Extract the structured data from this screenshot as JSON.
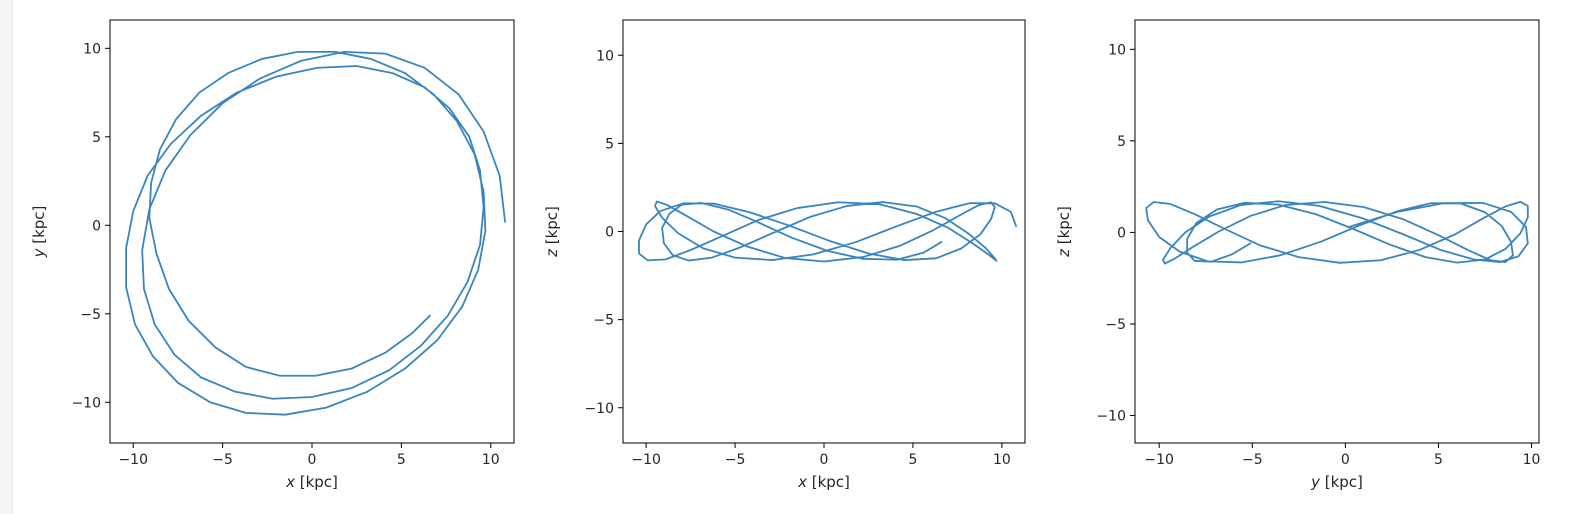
{
  "colors": {
    "line": "#3a85c0",
    "axes": "#000000",
    "text": "#262626",
    "background": "#ffffff"
  },
  "chart_data": [
    {
      "type": "line",
      "xlabel": {
        "var": "x",
        "unit": " [kpc]"
      },
      "ylabel": {
        "var": "y",
        "unit": " [kpc]"
      },
      "xlim": [
        -11.3,
        11.3
      ],
      "ylim": [
        -12.3,
        11.6
      ],
      "xticks": [
        -10,
        -5,
        0,
        5,
        10
      ],
      "yticks": [
        -10,
        -5,
        0,
        5,
        10
      ],
      "xtick_labels": [
        "−10",
        "−5",
        "0",
        "5",
        "10"
      ],
      "ytick_labels": [
        "−10",
        "−5",
        "0",
        "5",
        "10"
      ],
      "grid": false,
      "series": [
        {
          "x": [
            10.8,
            10.5,
            9.6,
            8.2,
            6.3,
            4.1,
            1.8,
            -0.6,
            -2.9,
            -5.0,
            -6.8,
            -8.2,
            -9.1,
            -9.5,
            -9.4,
            -8.8,
            -7.7,
            -6.2,
            -4.3,
            -2.2,
            0.0,
            2.2,
            4.3,
            6.1,
            7.6,
            8.7,
            9.4,
            9.6,
            9.4,
            8.8,
            7.7,
            6.3,
            4.5,
            2.5,
            0.3,
            -2.0,
            -4.2,
            -6.2,
            -7.9,
            -9.2,
            -10.0,
            -10.4,
            -10.4,
            -9.9,
            -8.9,
            -7.5,
            -5.7,
            -3.7,
            -1.5,
            0.8,
            3.1,
            5.2,
            7.0,
            8.4,
            9.3,
            9.7,
            9.6,
            9.1,
            8.1,
            6.8,
            5.2,
            3.3,
            1.3,
            -0.8,
            -2.8,
            -4.7,
            -6.3,
            -7.6,
            -8.5,
            -9.0,
            -9.1,
            -8.7,
            -8.0,
            -6.9,
            -5.4,
            -3.7,
            -1.8,
            0.2,
            2.2,
            4.1,
            5.6,
            6.6
          ],
          "y": [
            0.2,
            2.8,
            5.3,
            7.4,
            8.9,
            9.7,
            9.8,
            9.3,
            8.3,
            6.9,
            5.1,
            3.1,
            0.9,
            -1.4,
            -3.6,
            -5.6,
            -7.3,
            -8.6,
            -9.4,
            -9.8,
            -9.7,
            -9.2,
            -8.2,
            -6.8,
            -5.1,
            -3.2,
            -1.1,
            1.0,
            3.1,
            5.0,
            6.6,
            7.8,
            8.6,
            9.0,
            8.9,
            8.4,
            7.5,
            6.2,
            4.6,
            2.8,
            0.8,
            -1.3,
            -3.5,
            -5.6,
            -7.4,
            -8.9,
            -10.0,
            -10.6,
            -10.7,
            -10.3,
            -9.4,
            -8.1,
            -6.5,
            -4.6,
            -2.5,
            -0.3,
            1.9,
            4.0,
            5.9,
            7.4,
            8.6,
            9.4,
            9.8,
            9.8,
            9.4,
            8.6,
            7.5,
            6.0,
            4.3,
            2.4,
            0.4,
            -1.6,
            -3.6,
            -5.4,
            -6.9,
            -8.0,
            -8.5,
            -8.5,
            -8.1,
            -7.2,
            -6.1,
            -5.1
          ]
        }
      ]
    },
    {
      "type": "line",
      "xlabel": {
        "var": "x",
        "unit": " [kpc]"
      },
      "ylabel": {
        "var": "z",
        "unit": " [kpc]"
      },
      "xlim": [
        -11.3,
        11.3
      ],
      "ylim": [
        -12.0,
        12.0
      ],
      "xticks": [
        -10,
        -5,
        0,
        5,
        10
      ],
      "yticks": [
        -10,
        -5,
        0,
        5,
        10
      ],
      "xtick_labels": [
        "−10",
        "−5",
        "0",
        "5",
        "10"
      ],
      "ytick_labels": [
        "−10",
        "−5",
        "0",
        "5",
        "10"
      ],
      "grid": false,
      "series": [
        {
          "x": [
            10.8,
            10.5,
            9.6,
            8.2,
            6.3,
            4.1,
            1.8,
            -0.6,
            -2.9,
            -5.0,
            -6.8,
            -8.2,
            -9.1,
            -9.5,
            -9.4,
            -8.8,
            -7.7,
            -6.2,
            -4.3,
            -2.2,
            0.0,
            2.2,
            4.3,
            6.1,
            7.6,
            8.7,
            9.4,
            9.6,
            9.4,
            8.8,
            7.7,
            6.3,
            4.5,
            2.5,
            0.3,
            -2.0,
            -4.2,
            -6.2,
            -7.9,
            -9.2,
            -10.0,
            -10.4,
            -10.4,
            -9.9,
            -8.9,
            -7.5,
            -5.7,
            -3.7,
            -1.5,
            0.8,
            3.1,
            5.2,
            7.0,
            8.4,
            9.3,
            9.7,
            9.6,
            9.1,
            8.1,
            6.8,
            5.2,
            3.3,
            1.3,
            -0.8,
            -2.8,
            -4.7,
            -6.3,
            -7.6,
            -8.5,
            -9.0,
            -9.1,
            -8.7,
            -8.0,
            -6.9,
            -5.4,
            -3.7,
            -1.8,
            0.2,
            2.2,
            4.1,
            5.6,
            6.6
          ],
          "z": [
            0.3,
            1.12,
            1.6,
            1.61,
            1.12,
            0.3,
            -0.6,
            -1.3,
            -1.62,
            -1.48,
            -0.95,
            -0.1,
            0.78,
            1.45,
            1.7,
            1.5,
            0.87,
            0.0,
            -0.86,
            -1.5,
            -1.7,
            -1.45,
            -0.8,
            0.05,
            0.9,
            1.5,
            1.66,
            1.38,
            0.72,
            -0.15,
            -0.97,
            -1.52,
            -1.62,
            -1.25,
            -0.53,
            0.35,
            1.1,
            1.58,
            1.6,
            1.16,
            0.4,
            -0.5,
            -1.25,
            -1.64,
            -1.58,
            -1.05,
            -0.25,
            0.65,
            1.33,
            1.66,
            1.55,
            1.0,
            0.2,
            -0.7,
            -1.35,
            -1.66,
            -1.52,
            -0.95,
            -0.1,
            0.77,
            1.42,
            1.67,
            1.45,
            0.82,
            -0.05,
            -0.9,
            -1.48,
            -1.65,
            -1.35,
            -0.67,
            0.2,
            1.0,
            1.52,
            1.62,
            1.25,
            0.52,
            -0.36,
            -1.1,
            -1.55,
            -1.6,
            -1.2,
            -0.6
          ]
        }
      ]
    },
    {
      "type": "line",
      "xlabel": {
        "var": "y",
        "unit": " [kpc]"
      },
      "ylabel": {
        "var": "z",
        "unit": " [kpc]"
      },
      "xlim": [
        -11.3,
        10.4
      ],
      "ylim": [
        -11.5,
        11.6
      ],
      "xticks": [
        -10,
        -5,
        0,
        5,
        10
      ],
      "yticks": [
        -10,
        -5,
        0,
        5,
        10
      ],
      "xtick_labels": [
        "−10",
        "−5",
        "0",
        "5",
        "10"
      ],
      "ytick_labels": [
        "−10",
        "−5",
        "0",
        "5",
        "10"
      ],
      "grid": false,
      "series": [
        {
          "y": [
            0.2,
            2.8,
            5.3,
            7.4,
            8.9,
            9.7,
            9.8,
            9.3,
            8.3,
            6.9,
            5.1,
            3.1,
            0.9,
            -1.4,
            -3.6,
            -5.6,
            -7.3,
            -8.6,
            -9.4,
            -9.8,
            -9.7,
            -9.2,
            -8.2,
            -6.8,
            -5.1,
            -3.2,
            -1.1,
            1.0,
            3.1,
            5.0,
            6.6,
            7.8,
            8.6,
            9.0,
            8.9,
            8.4,
            7.5,
            6.2,
            4.6,
            2.8,
            0.8,
            -1.3,
            -3.5,
            -5.6,
            -7.4,
            -8.9,
            -10.0,
            -10.6,
            -10.7,
            -10.3,
            -9.4,
            -8.1,
            -6.5,
            -4.6,
            -2.5,
            -0.3,
            1.9,
            4.0,
            5.9,
            7.4,
            8.6,
            9.4,
            9.8,
            9.8,
            9.4,
            8.6,
            7.5,
            6.0,
            4.3,
            2.4,
            0.4,
            -1.6,
            -3.6,
            -5.4,
            -6.9,
            -8.0,
            -8.5,
            -8.5,
            -8.1,
            -7.2,
            -6.1,
            -5.1
          ],
          "z": [
            0.3,
            1.12,
            1.6,
            1.61,
            1.12,
            0.3,
            -0.6,
            -1.3,
            -1.62,
            -1.48,
            -0.95,
            -0.1,
            0.78,
            1.45,
            1.7,
            1.5,
            0.87,
            0.0,
            -0.86,
            -1.5,
            -1.7,
            -1.45,
            -0.8,
            0.05,
            0.9,
            1.5,
            1.66,
            1.38,
            0.72,
            -0.15,
            -0.97,
            -1.52,
            -1.62,
            -1.25,
            -0.53,
            0.35,
            1.1,
            1.58,
            1.6,
            1.16,
            0.4,
            -0.5,
            -1.25,
            -1.64,
            -1.58,
            -1.05,
            -0.25,
            0.65,
            1.33,
            1.66,
            1.55,
            1.0,
            0.2,
            -0.7,
            -1.35,
            -1.66,
            -1.52,
            -0.95,
            -0.1,
            0.77,
            1.42,
            1.67,
            1.45,
            0.82,
            -0.05,
            -0.9,
            -1.48,
            -1.65,
            -1.35,
            -0.67,
            0.2,
            1.0,
            1.52,
            1.62,
            1.25,
            0.52,
            -0.36,
            -1.1,
            -1.55,
            -1.6,
            -1.2,
            -0.6
          ]
        }
      ]
    }
  ]
}
